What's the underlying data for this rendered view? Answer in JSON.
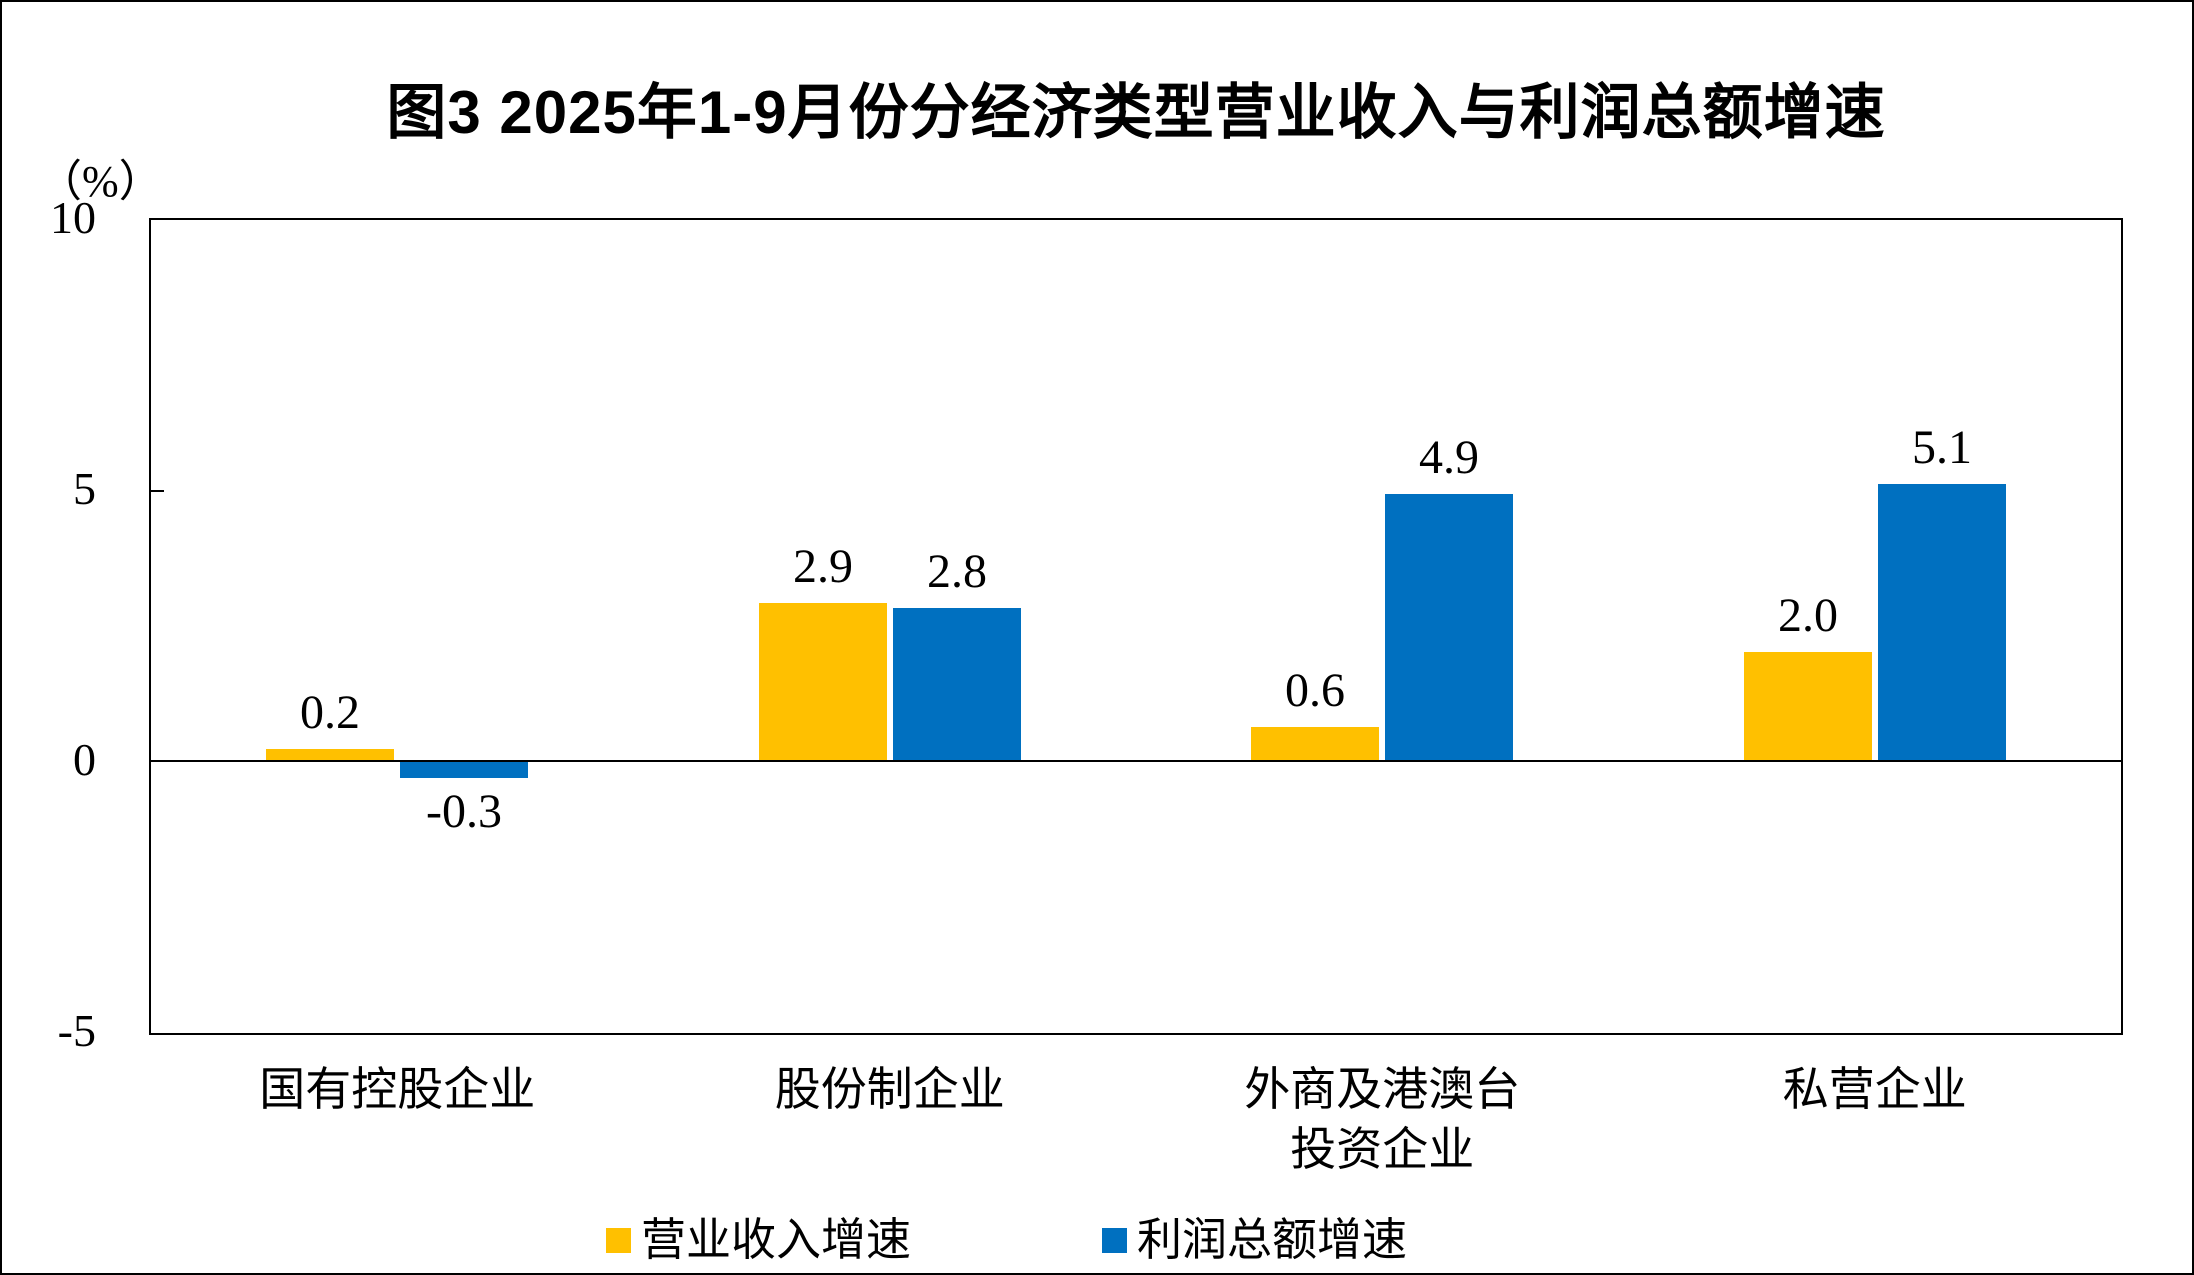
{
  "chart_data": {
    "type": "bar",
    "title": "图3  2025年1-9月份分经济类型营业收入与利润总额增速",
    "unit_label": "（%）",
    "categories": [
      "国有控股企业",
      "股份制企业",
      "外商及港澳台\n投资企业",
      "私营企业"
    ],
    "series": [
      {
        "name": "营业收入增速",
        "color": "#FFC000",
        "values": [
          0.2,
          2.9,
          0.6,
          2.0
        ]
      },
      {
        "name": "利润总额增速",
        "color": "#0070C0",
        "values": [
          -0.3,
          2.8,
          4.9,
          5.1
        ]
      }
    ],
    "data_labels": {
      "营业收入增速": [
        "0.2",
        "2.9",
        "0.6",
        "2.0"
      ],
      "利润总额增速": [
        "-0.3",
        "2.8",
        "4.9",
        "5.1"
      ]
    },
    "ylim": [
      -5,
      10
    ],
    "yticks": [
      10,
      5,
      0,
      -5
    ],
    "grid": false,
    "legend_position": "bottom",
    "axis_color": "#000000",
    "background_color": "#FFFFFF"
  }
}
